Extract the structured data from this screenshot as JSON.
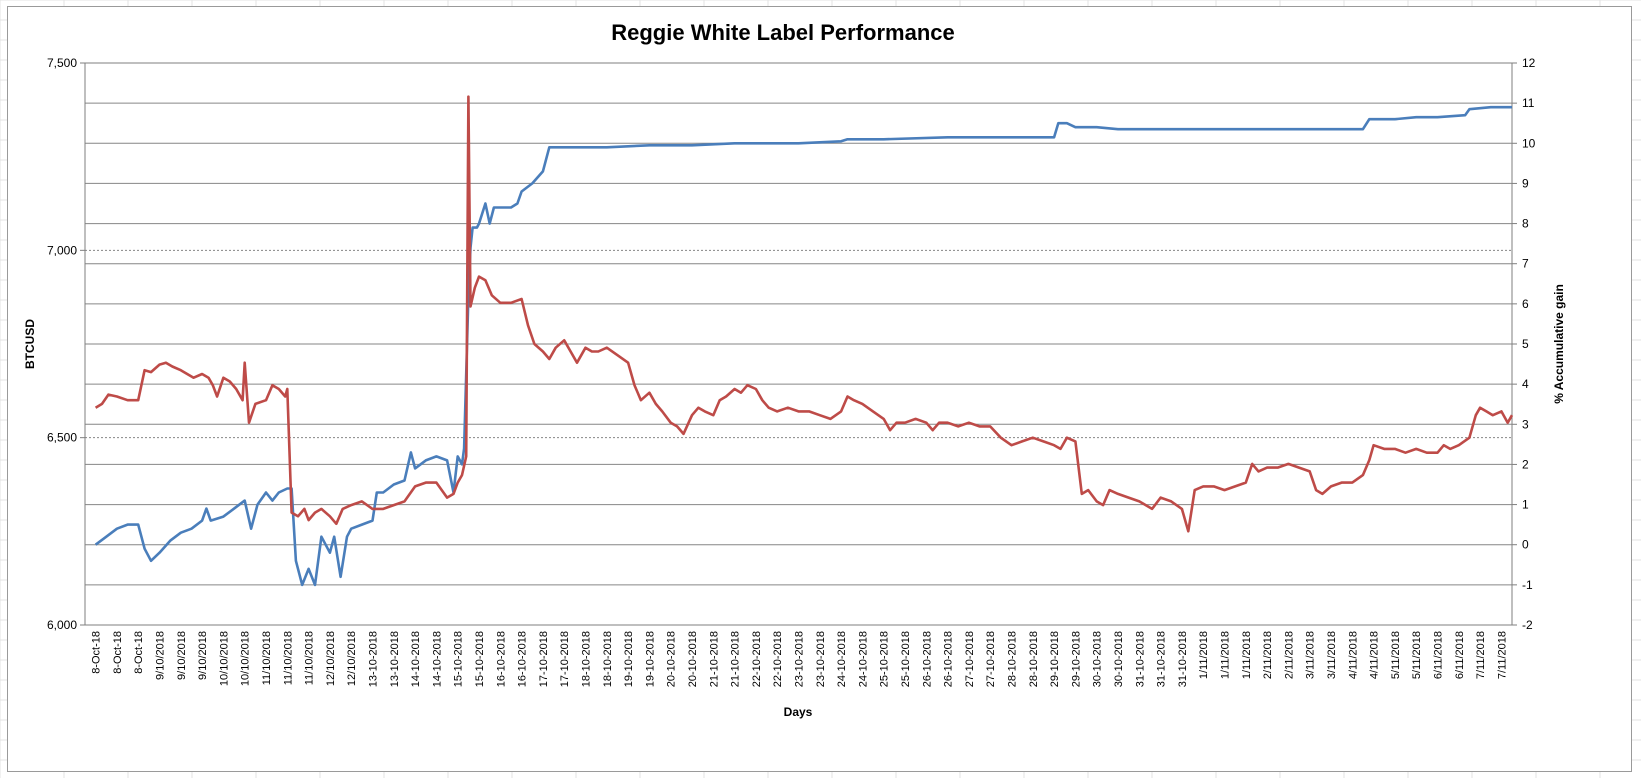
{
  "chart_data": {
    "type": "line",
    "title": "Reggie White Label Performance",
    "xlabel": "Days",
    "ylabel_left": "BTCUSD",
    "ylabel_right": "% Accumulative gain",
    "left_axis": {
      "min": 6000,
      "max": 7500,
      "ticks": [
        6000,
        6500,
        7000,
        7500
      ],
      "tick_labels": [
        "6,000",
        "6,500",
        "7,000",
        "7,500"
      ]
    },
    "right_axis": {
      "min": -2,
      "max": 12,
      "ticks": [
        -2,
        -1,
        0,
        1,
        2,
        3,
        4,
        5,
        6,
        7,
        8,
        9,
        10,
        11,
        12
      ]
    },
    "grid": true,
    "x_tick_labels": [
      "8-Oct-18",
      "8-Oct-18",
      "8-Oct-18",
      "9/10/2018",
      "9/10/2018",
      "9/10/2018",
      "10/10/2018",
      "10/10/2018",
      "11/10/2018",
      "11/10/2018",
      "11/10/2018",
      "12/10/2018",
      "12/10/2018",
      "13-10-2018",
      "13-10-2018",
      "14-10-2018",
      "14-10-2018",
      "15-10-2018",
      "15-10-2018",
      "16-10-2018",
      "16-10-2018",
      "17-10-2018",
      "17-10-2018",
      "18-10-2018",
      "18-10-2018",
      "19-10-2018",
      "19-10-2018",
      "20-10-2018",
      "20-10-2018",
      "21-10-2018",
      "21-10-2018",
      "22-10-2018",
      "22-10-2018",
      "23-10-2018",
      "23-10-2018",
      "24-10-2018",
      "24-10-2018",
      "25-10-2018",
      "25-10-2018",
      "26-10-2018",
      "26-10-2018",
      "27-10-2018",
      "27-10-2018",
      "28-10-2018",
      "28-10-2018",
      "29-10-2018",
      "29-10-2018",
      "30-10-2018",
      "30-10-2018",
      "31-10-2018",
      "31-10-2018",
      "31-10-2018",
      "1/11/2018",
      "1/11/2018",
      "1/11/2018",
      "2/11/2018",
      "2/11/2018",
      "3/11/2018",
      "3/11/2018",
      "4/11/2018",
      "4/11/2018",
      "5/11/2018",
      "5/11/2018",
      "6/11/2018",
      "6/11/2018",
      "7/11/2018",
      "7/11/2018"
    ],
    "series": [
      {
        "name": "",
        "axis": "right",
        "color": "#4a7ebb",
        "points": [
          [
            0,
            0
          ],
          [
            0.5,
            0.2
          ],
          [
            1,
            0.4
          ],
          [
            1.5,
            0.5
          ],
          [
            2,
            0.5
          ],
          [
            2.3,
            -0.1
          ],
          [
            2.6,
            -0.4
          ],
          [
            3,
            -0.2
          ],
          [
            3.5,
            0.1
          ],
          [
            4,
            0.3
          ],
          [
            4.5,
            0.4
          ],
          [
            5,
            0.6
          ],
          [
            5.2,
            0.9
          ],
          [
            5.4,
            0.6
          ],
          [
            6,
            0.7
          ],
          [
            6.5,
            0.9
          ],
          [
            7,
            1.1
          ],
          [
            7.3,
            0.4
          ],
          [
            7.6,
            1.0
          ],
          [
            8,
            1.3
          ],
          [
            8.3,
            1.1
          ],
          [
            8.6,
            1.3
          ],
          [
            9,
            1.4
          ],
          [
            9.2,
            1.4
          ],
          [
            9.4,
            -0.4
          ],
          [
            9.7,
            -1.0
          ],
          [
            10,
            -0.6
          ],
          [
            10.3,
            -1.0
          ],
          [
            10.6,
            0.2
          ],
          [
            11,
            -0.2
          ],
          [
            11.2,
            0.2
          ],
          [
            11.5,
            -0.8
          ],
          [
            11.8,
            0.2
          ],
          [
            12,
            0.4
          ],
          [
            12.5,
            0.5
          ],
          [
            13,
            0.6
          ],
          [
            13.2,
            1.3
          ],
          [
            13.5,
            1.3
          ],
          [
            14,
            1.5
          ],
          [
            14.5,
            1.6
          ],
          [
            14.8,
            2.3
          ],
          [
            15,
            1.9
          ],
          [
            15.5,
            2.1
          ],
          [
            16,
            2.2
          ],
          [
            16.5,
            2.1
          ],
          [
            16.8,
            1.3
          ],
          [
            17,
            2.2
          ],
          [
            17.2,
            2.0
          ],
          [
            17.3,
            2.4
          ],
          [
            17.5,
            6.2
          ],
          [
            17.6,
            7.4
          ],
          [
            17.7,
            7.9
          ],
          [
            17.9,
            7.9
          ],
          [
            18,
            8.0
          ],
          [
            18.3,
            8.5
          ],
          [
            18.5,
            8.0
          ],
          [
            18.7,
            8.4
          ],
          [
            19,
            8.4
          ],
          [
            19.5,
            8.4
          ],
          [
            19.8,
            8.5
          ],
          [
            20,
            8.8
          ],
          [
            20.5,
            9.0
          ],
          [
            21,
            9.3
          ],
          [
            21.3,
            9.9
          ],
          [
            22,
            9.9
          ],
          [
            24,
            9.9
          ],
          [
            26,
            9.95
          ],
          [
            28,
            9.95
          ],
          [
            30,
            10.0
          ],
          [
            33,
            10.0
          ],
          [
            35,
            10.05
          ],
          [
            35.3,
            10.1
          ],
          [
            37,
            10.1
          ],
          [
            40,
            10.15
          ],
          [
            43,
            10.15
          ],
          [
            45,
            10.15
          ],
          [
            45.2,
            10.5
          ],
          [
            45.6,
            10.5
          ],
          [
            46,
            10.4
          ],
          [
            47,
            10.4
          ],
          [
            48,
            10.35
          ],
          [
            49,
            10.35
          ],
          [
            50,
            10.35
          ],
          [
            52,
            10.35
          ],
          [
            55,
            10.35
          ],
          [
            59.5,
            10.35
          ],
          [
            59.8,
            10.6
          ],
          [
            61,
            10.6
          ],
          [
            62,
            10.65
          ],
          [
            63,
            10.65
          ],
          [
            64.3,
            10.7
          ],
          [
            64.5,
            10.85
          ],
          [
            65.5,
            10.9
          ],
          [
            66.5,
            10.9
          ]
        ]
      },
      {
        "name": "",
        "axis": "left",
        "color": "#be4b48",
        "points": [
          [
            0,
            6580
          ],
          [
            0.3,
            6590
          ],
          [
            0.6,
            6615
          ],
          [
            1,
            6610
          ],
          [
            1.5,
            6600
          ],
          [
            2,
            6600
          ],
          [
            2.3,
            6680
          ],
          [
            2.6,
            6675
          ],
          [
            3,
            6695
          ],
          [
            3.3,
            6700
          ],
          [
            3.6,
            6690
          ],
          [
            4,
            6680
          ],
          [
            4.3,
            6670
          ],
          [
            4.6,
            6660
          ],
          [
            5,
            6670
          ],
          [
            5.3,
            6660
          ],
          [
            5.5,
            6640
          ],
          [
            5.7,
            6610
          ],
          [
            6,
            6660
          ],
          [
            6.3,
            6650
          ],
          [
            6.6,
            6630
          ],
          [
            6.9,
            6600
          ],
          [
            7,
            6700
          ],
          [
            7.2,
            6540
          ],
          [
            7.5,
            6590
          ],
          [
            8,
            6600
          ],
          [
            8.3,
            6640
          ],
          [
            8.6,
            6630
          ],
          [
            8.9,
            6610
          ],
          [
            9,
            6630
          ],
          [
            9.2,
            6300
          ],
          [
            9.5,
            6290
          ],
          [
            9.8,
            6310
          ],
          [
            10,
            6280
          ],
          [
            10.3,
            6300
          ],
          [
            10.6,
            6310
          ],
          [
            11,
            6290
          ],
          [
            11.3,
            6270
          ],
          [
            11.6,
            6310
          ],
          [
            12,
            6320
          ],
          [
            12.5,
            6330
          ],
          [
            13,
            6310
          ],
          [
            13.5,
            6310
          ],
          [
            14,
            6320
          ],
          [
            14.5,
            6330
          ],
          [
            15,
            6370
          ],
          [
            15.5,
            6380
          ],
          [
            16,
            6380
          ],
          [
            16.5,
            6340
          ],
          [
            16.8,
            6350
          ],
          [
            17,
            6380
          ],
          [
            17.2,
            6400
          ],
          [
            17.4,
            6450
          ],
          [
            17.5,
            7410
          ],
          [
            17.6,
            6850
          ],
          [
            17.8,
            6900
          ],
          [
            18,
            6930
          ],
          [
            18.3,
            6920
          ],
          [
            18.6,
            6880
          ],
          [
            19,
            6860
          ],
          [
            19.5,
            6860
          ],
          [
            20,
            6870
          ],
          [
            20.3,
            6800
          ],
          [
            20.6,
            6750
          ],
          [
            21,
            6730
          ],
          [
            21.3,
            6710
          ],
          [
            21.6,
            6740
          ],
          [
            22,
            6760
          ],
          [
            22.3,
            6730
          ],
          [
            22.6,
            6700
          ],
          [
            23,
            6740
          ],
          [
            23.3,
            6730
          ],
          [
            23.6,
            6730
          ],
          [
            24,
            6740
          ],
          [
            24.5,
            6720
          ],
          [
            25,
            6700
          ],
          [
            25.3,
            6640
          ],
          [
            25.6,
            6600
          ],
          [
            26,
            6620
          ],
          [
            26.3,
            6590
          ],
          [
            26.6,
            6570
          ],
          [
            27,
            6540
          ],
          [
            27.3,
            6530
          ],
          [
            27.6,
            6510
          ],
          [
            28,
            6560
          ],
          [
            28.3,
            6580
          ],
          [
            28.6,
            6570
          ],
          [
            29,
            6560
          ],
          [
            29.3,
            6600
          ],
          [
            29.6,
            6610
          ],
          [
            30,
            6630
          ],
          [
            30.3,
            6620
          ],
          [
            30.6,
            6640
          ],
          [
            31,
            6630
          ],
          [
            31.3,
            6600
          ],
          [
            31.6,
            6580
          ],
          [
            32,
            6570
          ],
          [
            32.5,
            6580
          ],
          [
            33,
            6570
          ],
          [
            33.5,
            6570
          ],
          [
            34,
            6560
          ],
          [
            34.5,
            6550
          ],
          [
            35,
            6570
          ],
          [
            35.3,
            6610
          ],
          [
            35.6,
            6600
          ],
          [
            36,
            6590
          ],
          [
            36.5,
            6570
          ],
          [
            37,
            6550
          ],
          [
            37.3,
            6520
          ],
          [
            37.6,
            6540
          ],
          [
            38,
            6540
          ],
          [
            38.5,
            6550
          ],
          [
            39,
            6540
          ],
          [
            39.3,
            6520
          ],
          [
            39.6,
            6540
          ],
          [
            40,
            6540
          ],
          [
            40.5,
            6530
          ],
          [
            41,
            6540
          ],
          [
            41.5,
            6530
          ],
          [
            42,
            6530
          ],
          [
            42.5,
            6500
          ],
          [
            43,
            6480
          ],
          [
            43.5,
            6490
          ],
          [
            44,
            6500
          ],
          [
            44.5,
            6490
          ],
          [
            45,
            6480
          ],
          [
            45.3,
            6470
          ],
          [
            45.6,
            6500
          ],
          [
            46,
            6490
          ],
          [
            46.3,
            6350
          ],
          [
            46.6,
            6360
          ],
          [
            47,
            6330
          ],
          [
            47.3,
            6320
          ],
          [
            47.6,
            6360
          ],
          [
            48,
            6350
          ],
          [
            48.5,
            6340
          ],
          [
            49,
            6330
          ],
          [
            49.3,
            6320
          ],
          [
            49.6,
            6310
          ],
          [
            50,
            6340
          ],
          [
            50.5,
            6330
          ],
          [
            51,
            6310
          ],
          [
            51.3,
            6250
          ],
          [
            51.6,
            6360
          ],
          [
            52,
            6370
          ],
          [
            52.5,
            6370
          ],
          [
            53,
            6360
          ],
          [
            53.5,
            6370
          ],
          [
            54,
            6380
          ],
          [
            54.3,
            6430
          ],
          [
            54.6,
            6410
          ],
          [
            55,
            6420
          ],
          [
            55.5,
            6420
          ],
          [
            56,
            6430
          ],
          [
            56.5,
            6420
          ],
          [
            57,
            6410
          ],
          [
            57.3,
            6360
          ],
          [
            57.6,
            6350
          ],
          [
            58,
            6370
          ],
          [
            58.5,
            6380
          ],
          [
            59,
            6380
          ],
          [
            59.5,
            6400
          ],
          [
            59.8,
            6440
          ],
          [
            60,
            6480
          ],
          [
            60.5,
            6470
          ],
          [
            61,
            6470
          ],
          [
            61.5,
            6460
          ],
          [
            62,
            6470
          ],
          [
            62.5,
            6460
          ],
          [
            63,
            6460
          ],
          [
            63.3,
            6480
          ],
          [
            63.6,
            6470
          ],
          [
            64,
            6480
          ],
          [
            64.5,
            6500
          ],
          [
            64.8,
            6560
          ],
          [
            65,
            6580
          ],
          [
            65.3,
            6570
          ],
          [
            65.6,
            6560
          ],
          [
            66,
            6570
          ],
          [
            66.3,
            6540
          ],
          [
            66.5,
            6560
          ]
        ]
      }
    ]
  }
}
